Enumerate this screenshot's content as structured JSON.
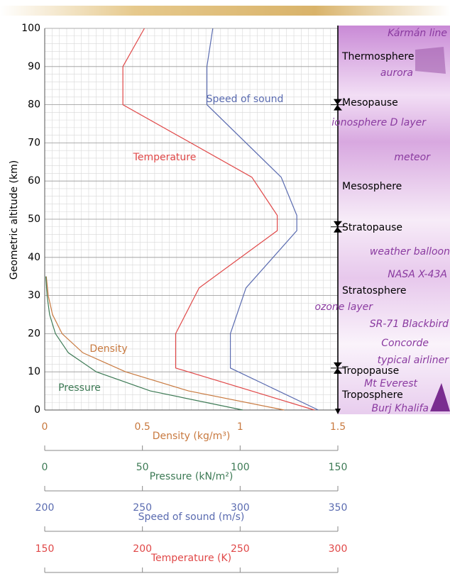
{
  "chart_data": {
    "type": "line",
    "ylabel": "Geometric altitude (km)",
    "ylim": [
      0,
      100
    ],
    "yticks": [
      0,
      10,
      20,
      30,
      40,
      50,
      60,
      70,
      80,
      90,
      100
    ],
    "grid": true,
    "series": [
      {
        "name": "Density",
        "color": "#c8793f",
        "xlabel": "Density (kg/m³)",
        "xlim": [
          0,
          1.5
        ],
        "xticks": [
          0,
          0.5,
          1,
          1.5
        ],
        "altitudes": [
          0,
          5,
          10,
          15,
          20,
          25,
          30,
          35
        ],
        "values": [
          1.225,
          0.736,
          0.414,
          0.195,
          0.089,
          0.04,
          0.018,
          0.008
        ]
      },
      {
        "name": "Pressure",
        "color": "#3d7a55",
        "xlabel": "Pressure (kN/m²)",
        "xlim": [
          0,
          150
        ],
        "xticks": [
          0,
          50,
          100,
          150
        ],
        "altitudes": [
          0,
          5,
          10,
          15,
          20,
          25,
          30,
          35
        ],
        "values": [
          101.3,
          54.0,
          26.4,
          12.1,
          5.5,
          2.5,
          1.2,
          0.57
        ]
      },
      {
        "name": "Speed of sound",
        "color": "#5a6bb0",
        "xlabel": "Speed of sound (m/s)",
        "xlim": [
          200,
          350
        ],
        "xticks": [
          200,
          250,
          300,
          350
        ],
        "altitudes": [
          0,
          11,
          20,
          32,
          47,
          51,
          61,
          80,
          90,
          100
        ],
        "values": [
          340,
          295,
          295,
          303,
          329,
          329,
          321,
          283,
          283,
          286
        ]
      },
      {
        "name": "Temperature",
        "color": "#e04848",
        "xlabel": "Temperature (K)",
        "xlim": [
          150,
          300
        ],
        "xticks": [
          150,
          200,
          250,
          300
        ],
        "altitudes": [
          0,
          11,
          20,
          32,
          47,
          51,
          61,
          80,
          90,
          100
        ],
        "values": [
          288,
          217,
          217,
          229,
          269,
          269,
          256,
          190,
          190,
          201
        ]
      }
    ],
    "layers": [
      "Thermosphere",
      "Mesopause",
      "Mesosphere",
      "Stratopause",
      "Stratosphere",
      "Tropopause",
      "Troposphere"
    ],
    "annotations": [
      "Kármán line",
      "aurora",
      "ionosphere D layer",
      "meteor",
      "weather balloon",
      "NASA X-43A",
      "ozone layer",
      "SR-71 Blackbird",
      "Concorde",
      "typical airliner",
      "Mt Everest",
      "Burj Khalifa"
    ]
  }
}
